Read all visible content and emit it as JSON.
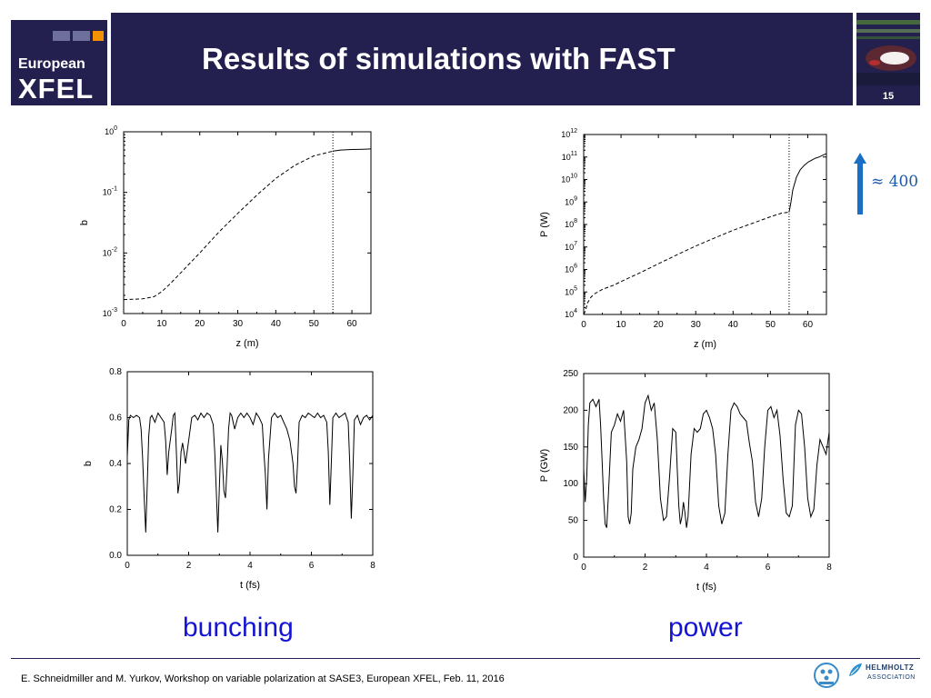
{
  "header": {
    "logo_line1": "European",
    "logo_line2": "XFEL",
    "title": "Results of simulations with FAST",
    "page_number": "15"
  },
  "captions": {
    "left": "bunching",
    "right": "power"
  },
  "annotation": {
    "ratio_text": "≈ 400",
    "arrow_color": "#1a6fc4"
  },
  "footer": {
    "citation": "E. Schneidmiller and M. Yurkov, Workshop on variable polarization at SASE3, European XFEL, Feb. 11, 2016",
    "helmholtz_line1": "HELMHOLTZ",
    "helmholtz_line2": "ASSOCIATION"
  },
  "colors": {
    "brand_navy": "#231f4f",
    "logo_blue": "#6f6f9e",
    "logo_orange": "#f39200",
    "caption_blue": "#1414d2"
  },
  "chart_data": [
    {
      "id": "b_vs_z",
      "type": "line",
      "title": "",
      "xlabel": "z (m)",
      "ylabel": "b",
      "yscale": "log",
      "xlim": [
        0,
        65
      ],
      "ylim": [
        0.001,
        1
      ],
      "xticks": [
        "0",
        "10",
        "20",
        "30",
        "40",
        "50",
        "60"
      ],
      "xtick_values": [
        0,
        10,
        20,
        30,
        40,
        50,
        60
      ],
      "ytick_exponents": [
        0,
        -1,
        -2,
        -3
      ],
      "grid": false,
      "marker_z": 55,
      "series": [
        {
          "style": "dashed",
          "x": [
            0,
            5,
            8,
            10,
            12,
            15,
            20,
            25,
            30,
            35,
            40,
            45,
            50,
            55
          ],
          "y": [
            0.0017,
            0.00175,
            0.0019,
            0.0023,
            0.003,
            0.0047,
            0.01,
            0.022,
            0.045,
            0.09,
            0.17,
            0.28,
            0.4,
            0.48
          ]
        },
        {
          "style": "solid",
          "x": [
            55,
            57,
            60,
            63,
            65
          ],
          "y": [
            0.48,
            0.5,
            0.51,
            0.515,
            0.52
          ]
        }
      ]
    },
    {
      "id": "p_vs_z",
      "type": "line",
      "title": "",
      "xlabel": "z (m)",
      "ylabel": "P (W)",
      "yscale": "log",
      "xlim": [
        0,
        65
      ],
      "ylim": [
        10000,
        1000000000000
      ],
      "xticks": [
        "0",
        "10",
        "20",
        "30",
        "40",
        "50",
        "60"
      ],
      "xtick_values": [
        0,
        10,
        20,
        30,
        40,
        50,
        60
      ],
      "ytick_exponents": [
        12,
        11,
        10,
        9,
        8,
        7,
        6,
        5,
        4
      ],
      "grid": false,
      "marker_z": 55,
      "series": [
        {
          "style": "dashed",
          "x": [
            0,
            0.5,
            1,
            2,
            3,
            5,
            8,
            10,
            15,
            20,
            25,
            30,
            35,
            40,
            45,
            50,
            53,
            55
          ],
          "y": [
            10000,
            15000,
            32000,
            60000,
            85000,
            130000,
            200000,
            290000,
            700000,
            1800000,
            4500000,
            11000000,
            25000000,
            55000000,
            110000000,
            220000000,
            320000000,
            350000000
          ]
        },
        {
          "style": "solid",
          "x": [
            55,
            55.5,
            56,
            57,
            58,
            59,
            60,
            61,
            62,
            63,
            64,
            65
          ],
          "y": [
            350000000,
            1000000000,
            3500000000,
            13000000000,
            27000000000,
            42000000000,
            58000000000,
            72000000000,
            88000000000,
            100000000000,
            120000000000,
            140000000000
          ]
        }
      ]
    },
    {
      "id": "b_vs_t",
      "type": "line",
      "title": "",
      "xlabel": "t (fs)",
      "ylabel": "b",
      "xlim": [
        0,
        8
      ],
      "ylim": [
        0,
        0.8
      ],
      "xticks": [
        "0",
        "2",
        "4",
        "6",
        "8"
      ],
      "xtick_values": [
        0,
        2,
        4,
        6,
        8
      ],
      "yticks": [
        "0.0",
        "0.2",
        "0.4",
        "0.6",
        "0.8"
      ],
      "ytick_values": [
        0,
        0.2,
        0.4,
        0.6,
        0.8
      ],
      "grid": false,
      "series": [
        {
          "style": "solid",
          "x": [
            0,
            0.05,
            0.1,
            0.2,
            0.3,
            0.4,
            0.45,
            0.5,
            0.55,
            0.6,
            0.65,
            0.7,
            0.75,
            0.8,
            0.9,
            1.0,
            1.1,
            1.2,
            1.25,
            1.3,
            1.35,
            1.45,
            1.5,
            1.55,
            1.6,
            1.65,
            1.7,
            1.75,
            1.8,
            1.85,
            1.9,
            2.0,
            2.1,
            2.2,
            2.3,
            2.4,
            2.5,
            2.6,
            2.7,
            2.8,
            2.85,
            2.9,
            2.95,
            3.0,
            3.05,
            3.1,
            3.15,
            3.2,
            3.25,
            3.3,
            3.35,
            3.4,
            3.5,
            3.6,
            3.7,
            3.8,
            3.9,
            4.0,
            4.1,
            4.2,
            4.3,
            4.4,
            4.45,
            4.5,
            4.55,
            4.6,
            4.7,
            4.8,
            4.9,
            5.0,
            5.1,
            5.2,
            5.3,
            5.4,
            5.45,
            5.5,
            5.55,
            5.6,
            5.7,
            5.8,
            5.9,
            6.0,
            6.1,
            6.2,
            6.3,
            6.4,
            6.5,
            6.55,
            6.6,
            6.65,
            6.7,
            6.8,
            6.9,
            7.0,
            7.1,
            7.2,
            7.25,
            7.3,
            7.35,
            7.4,
            7.5,
            7.6,
            7.7,
            7.8,
            7.9,
            8.0
          ],
          "y": [
            0.43,
            0.59,
            0.61,
            0.6,
            0.61,
            0.6,
            0.55,
            0.42,
            0.25,
            0.1,
            0.3,
            0.52,
            0.6,
            0.61,
            0.58,
            0.62,
            0.6,
            0.58,
            0.5,
            0.35,
            0.45,
            0.55,
            0.61,
            0.62,
            0.45,
            0.27,
            0.32,
            0.45,
            0.49,
            0.45,
            0.4,
            0.5,
            0.6,
            0.61,
            0.59,
            0.62,
            0.6,
            0.62,
            0.61,
            0.57,
            0.45,
            0.28,
            0.1,
            0.3,
            0.48,
            0.41,
            0.28,
            0.25,
            0.38,
            0.55,
            0.62,
            0.61,
            0.55,
            0.6,
            0.62,
            0.6,
            0.62,
            0.6,
            0.57,
            0.62,
            0.6,
            0.57,
            0.45,
            0.35,
            0.2,
            0.42,
            0.6,
            0.62,
            0.6,
            0.61,
            0.58,
            0.55,
            0.5,
            0.4,
            0.3,
            0.27,
            0.4,
            0.58,
            0.61,
            0.6,
            0.62,
            0.61,
            0.6,
            0.62,
            0.6,
            0.61,
            0.58,
            0.45,
            0.22,
            0.4,
            0.6,
            0.62,
            0.6,
            0.61,
            0.62,
            0.58,
            0.4,
            0.16,
            0.35,
            0.59,
            0.61,
            0.57,
            0.6,
            0.61,
            0.59,
            0.61
          ]
        }
      ]
    },
    {
      "id": "p_vs_t",
      "type": "line",
      "title": "",
      "xlabel": "t (fs)",
      "ylabel": "P (GW)",
      "xlim": [
        0,
        8
      ],
      "ylim": [
        0,
        250
      ],
      "xticks": [
        "0",
        "2",
        "4",
        "6",
        "8"
      ],
      "xtick_values": [
        0,
        2,
        4,
        6,
        8
      ],
      "yticks": [
        "0",
        "50",
        "100",
        "150",
        "200",
        "250"
      ],
      "ytick_values": [
        0,
        50,
        100,
        150,
        200,
        250
      ],
      "grid": false,
      "series": [
        {
          "style": "solid",
          "x": [
            0,
            0.05,
            0.1,
            0.15,
            0.2,
            0.3,
            0.4,
            0.5,
            0.55,
            0.6,
            0.65,
            0.7,
            0.75,
            0.8,
            0.9,
            1.0,
            1.1,
            1.2,
            1.3,
            1.4,
            1.45,
            1.5,
            1.55,
            1.6,
            1.7,
            1.8,
            1.9,
            2.0,
            2.1,
            2.2,
            2.3,
            2.4,
            2.5,
            2.6,
            2.7,
            2.8,
            2.9,
            3.0,
            3.05,
            3.1,
            3.15,
            3.2,
            3.25,
            3.3,
            3.35,
            3.4,
            3.5,
            3.6,
            3.7,
            3.8,
            3.9,
            4.0,
            4.1,
            4.2,
            4.3,
            4.4,
            4.5,
            4.6,
            4.7,
            4.8,
            4.9,
            5.0,
            5.1,
            5.2,
            5.3,
            5.4,
            5.5,
            5.6,
            5.7,
            5.8,
            5.9,
            6.0,
            6.1,
            6.2,
            6.3,
            6.4,
            6.5,
            6.6,
            6.7,
            6.8,
            6.9,
            7.0,
            7.1,
            7.2,
            7.3,
            7.4,
            7.5,
            7.6,
            7.7,
            7.8,
            7.9,
            8.0
          ],
          "y": [
            120,
            75,
            110,
            180,
            210,
            215,
            205,
            215,
            180,
            130,
            80,
            45,
            40,
            80,
            170,
            180,
            195,
            185,
            200,
            130,
            55,
            45,
            60,
            120,
            150,
            160,
            175,
            210,
            220,
            200,
            210,
            160,
            80,
            50,
            55,
            110,
            175,
            170,
            120,
            70,
            45,
            55,
            75,
            60,
            40,
            55,
            140,
            175,
            170,
            175,
            195,
            200,
            190,
            175,
            140,
            70,
            45,
            60,
            140,
            200,
            210,
            205,
            195,
            190,
            185,
            155,
            130,
            75,
            55,
            80,
            150,
            200,
            205,
            190,
            200,
            165,
            105,
            60,
            55,
            70,
            180,
            200,
            195,
            150,
            80,
            55,
            65,
            125,
            160,
            150,
            140,
            170
          ]
        }
      ]
    }
  ]
}
